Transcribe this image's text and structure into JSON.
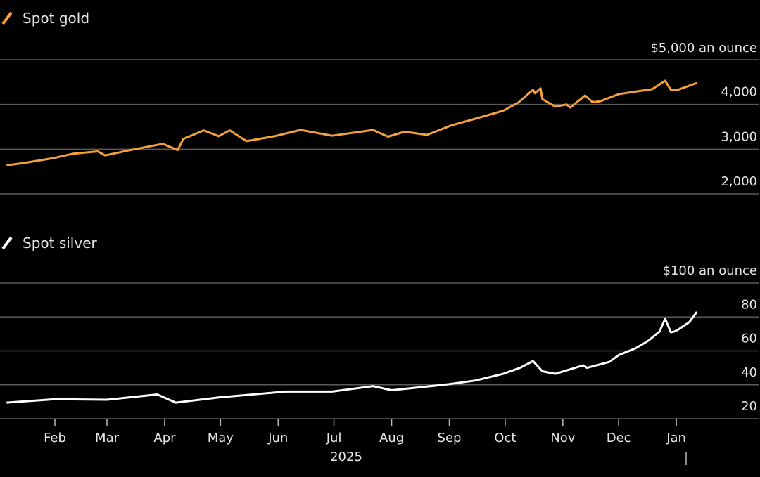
{
  "chart_data": [
    {
      "type": "line",
      "legend": "Spot gold",
      "unit_label": "$5,000 an ounce",
      "ylim": [
        2000,
        5000
      ],
      "yticks": [
        2000,
        3000,
        4000,
        5000
      ],
      "ytick_labels": [
        "2,000",
        "3,000",
        "4,000"
      ],
      "color": "#f5a03a",
      "grid": true,
      "series": [
        {
          "name": "Spot gold",
          "points": [
            [
              "2025-01-06",
              2640
            ],
            [
              "2025-01-15",
              2690
            ],
            [
              "2025-01-31",
              2800
            ],
            [
              "2025-02-11",
              2900
            ],
            [
              "2025-02-24",
              2950
            ],
            [
              "2025-02-28",
              2860
            ],
            [
              "2025-03-14",
              2985
            ],
            [
              "2025-03-31",
              3120
            ],
            [
              "2025-04-08",
              2980
            ],
            [
              "2025-04-11",
              3230
            ],
            [
              "2025-04-22",
              3420
            ],
            [
              "2025-04-30",
              3290
            ],
            [
              "2025-05-06",
              3420
            ],
            [
              "2025-05-15",
              3180
            ],
            [
              "2025-05-30",
              3290
            ],
            [
              "2025-06-13",
              3430
            ],
            [
              "2025-06-30",
              3300
            ],
            [
              "2025-07-22",
              3430
            ],
            [
              "2025-07-30",
              3280
            ],
            [
              "2025-08-08",
              3390
            ],
            [
              "2025-08-20",
              3320
            ],
            [
              "2025-09-02",
              3530
            ],
            [
              "2025-09-15",
              3680
            ],
            [
              "2025-09-30",
              3860
            ],
            [
              "2025-10-08",
              4040
            ],
            [
              "2025-10-16",
              4330
            ],
            [
              "2025-10-17",
              4250
            ],
            [
              "2025-10-20",
              4360
            ],
            [
              "2025-10-21",
              4120
            ],
            [
              "2025-10-28",
              3950
            ],
            [
              "2025-11-03",
              4000
            ],
            [
              "2025-11-05",
              3930
            ],
            [
              "2025-11-13",
              4200
            ],
            [
              "2025-11-17",
              4050
            ],
            [
              "2025-11-21",
              4070
            ],
            [
              "2025-12-01",
              4230
            ],
            [
              "2025-12-12",
              4300
            ],
            [
              "2025-12-19",
              4340
            ],
            [
              "2025-12-26",
              4530
            ],
            [
              "2025-12-29",
              4330
            ],
            [
              "2026-01-02",
              4330
            ],
            [
              "2026-01-12",
              4480
            ]
          ]
        }
      ]
    },
    {
      "type": "line",
      "legend": "Spot silver",
      "unit_label": "$100 an ounce",
      "ylim": [
        20,
        100
      ],
      "yticks": [
        20,
        40,
        60,
        80,
        100
      ],
      "ytick_labels": [
        "20",
        "40",
        "60",
        "80"
      ],
      "color": "#ffffff",
      "grid": true,
      "series": [
        {
          "name": "Spot silver",
          "points": [
            [
              "2025-01-06",
              29.5
            ],
            [
              "2025-02-01",
              31.5
            ],
            [
              "2025-03-01",
              31.2
            ],
            [
              "2025-03-28",
              34.3
            ],
            [
              "2025-04-07",
              29.5
            ],
            [
              "2025-04-30",
              32.5
            ],
            [
              "2025-06-05",
              36
            ],
            [
              "2025-06-30",
              36
            ],
            [
              "2025-07-22",
              39.2
            ],
            [
              "2025-08-01",
              36.8
            ],
            [
              "2025-08-29",
              40
            ],
            [
              "2025-09-15",
              42.5
            ],
            [
              "2025-09-30",
              46.5
            ],
            [
              "2025-10-09",
              50
            ],
            [
              "2025-10-16",
              54
            ],
            [
              "2025-10-21",
              48
            ],
            [
              "2025-10-28",
              46.5
            ],
            [
              "2025-11-12",
              51.5
            ],
            [
              "2025-11-14",
              50
            ],
            [
              "2025-11-26",
              53.5
            ],
            [
              "2025-12-01",
              57.5
            ],
            [
              "2025-12-10",
              61.5
            ],
            [
              "2025-12-17",
              66
            ],
            [
              "2025-12-23",
              71.5
            ],
            [
              "2025-12-26",
              79
            ],
            [
              "2025-12-29",
              71
            ],
            [
              "2025-12-31",
              71.5
            ],
            [
              "2026-01-02",
              72.5
            ],
            [
              "2026-01-08",
              77
            ],
            [
              "2026-01-12",
              83
            ]
          ]
        }
      ]
    }
  ],
  "x_axis": {
    "ticks": [
      "Feb",
      "Mar",
      "Apr",
      "May",
      "Jun",
      "Jul",
      "Aug",
      "Sep",
      "Oct",
      "Nov",
      "Dec",
      "Jan"
    ],
    "tick_dates": [
      "2025-02-01",
      "2025-03-01",
      "2025-04-01",
      "2025-05-01",
      "2025-06-01",
      "2025-07-01",
      "2025-08-01",
      "2025-09-01",
      "2025-10-01",
      "2025-11-01",
      "2025-12-01",
      "2026-01-01"
    ],
    "year_label": "2025"
  }
}
